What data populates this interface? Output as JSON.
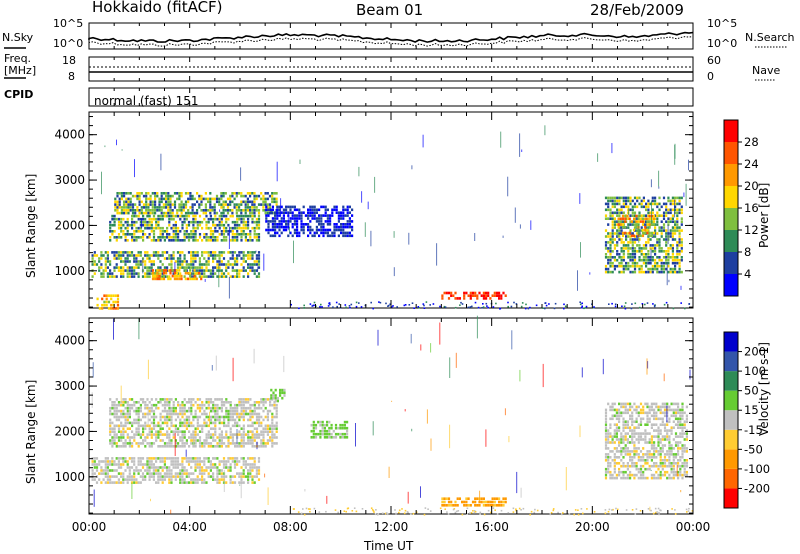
{
  "header": {
    "title": "Hokkaido (fitACF)",
    "beam": "Beam 01",
    "date": "28/Feb/2009"
  },
  "noise_panel": {
    "left_label": "N.Sky",
    "right_label": "N.Search",
    "tick_top": "10^5",
    "tick_bottom": "10^0"
  },
  "freq_panel": {
    "left_label_1": "Freq.",
    "left_label_2": "[MHz]",
    "right_label": "Nave",
    "left_tick_top": "18",
    "left_tick_bottom": "8",
    "right_tick_top": "60",
    "right_tick_bottom": "0"
  },
  "cpid_panel": {
    "label": "CPID",
    "text": "normal (fast) 151"
  },
  "colors": {
    "power_scale": [
      "#0000ff",
      "#1e3fa0",
      "#2e8b57",
      "#7fbf3f",
      "#ffd700",
      "#ff9900",
      "#ff5500",
      "#ff0000"
    ],
    "velocity_scale": [
      "#ff0000",
      "#ff6600",
      "#ff9900",
      "#ffcc33",
      "#c0c0c0",
      "#66cc33",
      "#2e8b57",
      "#3355aa",
      "#0000cc"
    ]
  },
  "chart_data": [
    {
      "type": "heatmap",
      "title": "",
      "ylabel": "Slant Range [km]",
      "y_ticks": [
        "1000",
        "2000",
        "3000",
        "4000"
      ],
      "ylim": [
        180,
        4500
      ],
      "xlim": [
        0,
        24
      ],
      "colorbar_label": "Power [dB]",
      "colorbar_ticks": [
        "4",
        "8",
        "12",
        "16",
        "20",
        "24",
        "28"
      ],
      "regions": [
        {
          "x0": 0.3,
          "x1": 1.2,
          "y0": 200,
          "y1": 550,
          "level": "high"
        },
        {
          "x0": 0.1,
          "x1": 6.8,
          "y0": 900,
          "y1": 1500,
          "level": "mid"
        },
        {
          "x0": 2.5,
          "x1": 4.5,
          "y0": 850,
          "y1": 1100,
          "level": "high"
        },
        {
          "x0": 0.8,
          "x1": 6.8,
          "y0": 1700,
          "y1": 2300,
          "level": "mid"
        },
        {
          "x0": 1.0,
          "x1": 7.5,
          "y0": 2300,
          "y1": 2800,
          "level": "mid"
        },
        {
          "x0": 7.0,
          "x1": 10.5,
          "y0": 1800,
          "y1": 2500,
          "level": "low"
        },
        {
          "x0": 14.0,
          "x1": 16.6,
          "y0": 420,
          "y1": 600,
          "level": "peak"
        },
        {
          "x0": 20.5,
          "x1": 23.6,
          "y0": 1000,
          "y1": 2700,
          "level": "mid"
        },
        {
          "x0": 21.0,
          "x1": 22.5,
          "y0": 1800,
          "y1": 2300,
          "level": "high"
        }
      ]
    },
    {
      "type": "heatmap",
      "title": "",
      "ylabel": "Slant Range [km]",
      "y_ticks": [
        "1000",
        "2000",
        "3000",
        "4000"
      ],
      "ylim": [
        180,
        4500
      ],
      "xlim": [
        0,
        24
      ],
      "xlabel": "Time UT",
      "x_ticks": [
        "00:00",
        "04:00",
        "08:00",
        "12:00",
        "16:00",
        "20:00",
        "00:00"
      ],
      "colorbar_label": "Velocity [m s-1]",
      "colorbar_ticks": [
        "200",
        "100",
        "50",
        "15",
        "-15",
        "-50",
        "-100",
        "-200"
      ],
      "regions": [
        {
          "x0": 0.1,
          "x1": 6.8,
          "y0": 900,
          "y1": 1500,
          "level": "gray"
        },
        {
          "x0": 0.8,
          "x1": 7.5,
          "y0": 1700,
          "y1": 2800,
          "level": "gray"
        },
        {
          "x0": 7.2,
          "x1": 7.9,
          "y0": 2700,
          "y1": 3000,
          "level": "green"
        },
        {
          "x0": 8.8,
          "x1": 10.3,
          "y0": 1900,
          "y1": 2300,
          "level": "green"
        },
        {
          "x0": 14.0,
          "x1": 16.6,
          "y0": 400,
          "y1": 620,
          "level": "orange"
        },
        {
          "x0": 20.5,
          "x1": 23.8,
          "y0": 1000,
          "y1": 2700,
          "level": "gray"
        }
      ]
    }
  ]
}
